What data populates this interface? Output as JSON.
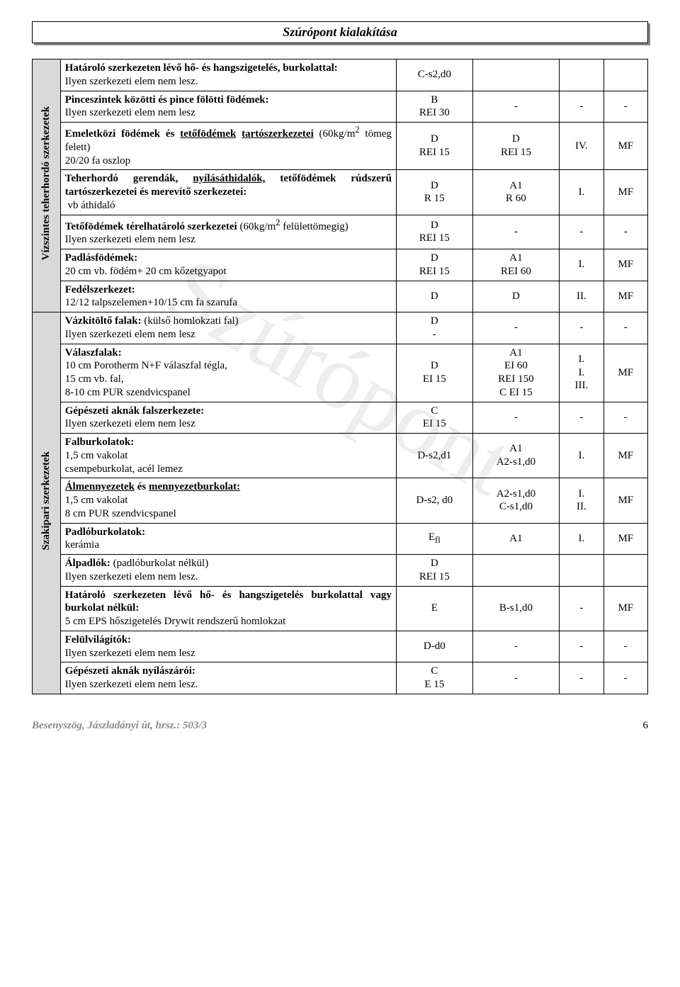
{
  "title": "Szúrópont kialakítása",
  "watermark": "Szúrópont",
  "footer_left": "Besenyszög, Jászladányi út, hrsz.: 503/3",
  "page_number": "6",
  "col_widths": {
    "vcol": 35,
    "desc": 400,
    "c3": 90,
    "c4": 100,
    "c5": 60,
    "c6": 60
  },
  "sections": [
    {
      "label": "Vízszintes teherhordó szerkezetek",
      "rows": [
        {
          "desc_html": "<span class='b'>Határoló szerkezeten lévő hő- és hangszigetelés, burkolattal:</span><br>Ilyen szerkezeti elem nem lesz.",
          "c3": "C-s2,d0",
          "c4": "",
          "c5": "",
          "c6": ""
        },
        {
          "desc_html": "<span class='b'>Pinceszintek közötti és pince fölötti födémek:</span><br>Ilyen szerkezeti elem nem lesz",
          "c3": "B\nREI 30",
          "c4": "-",
          "c5": "-",
          "c6": "-"
        },
        {
          "desc_html": "<span class='b'>Emeletközi födémek és <span class='u'>tetőfödémek</span> <span class='u'>tartószerkezetei</span></span> (60kg/m<sup>2</sup> tömeg felett)<br>20/20 fa oszlop",
          "c3": "D\nREI 15",
          "c4": "D\nREI 15",
          "c5": "IV.",
          "c6": "MF"
        },
        {
          "desc_html": "<span class='b'>Teherhordó gerendák, <span class='u'>nyílásáthidalók,</span> tetőfödémek rúdszerű tartószerkezetei és merevítő szerkezetei:</span><br>&nbsp;vb áthidaló",
          "c3": "D\nR 15",
          "c4": "A1\nR 60",
          "c5": "I.",
          "c6": "MF"
        },
        {
          "desc_html": "<span class='b'>Tetőfödémek térelhatároló szerkezetei</span> (60kg/m<sup>2</sup> felülettömegig)<br>Ilyen szerkezeti elem nem lesz",
          "c3": "D\nREI 15",
          "c4": "-",
          "c5": "-",
          "c6": "-"
        },
        {
          "desc_html": "<span class='b'>Padlásfödémek:</span><br>20 cm vb. födém+ 20 cm kőzetgyapot",
          "c3": "D\nREI 15",
          "c4": "A1\nREI 60",
          "c5": "I.",
          "c6": "MF"
        },
        {
          "desc_html": "<span class='b'>Fedélszerkezet:</span><br>12/12 talpszelemen+10/15 cm fa szarufa",
          "c3": "D",
          "c4": "D",
          "c5": "II.",
          "c6": "MF"
        }
      ]
    },
    {
      "label": "Szakipari szerkezetek",
      "rows": [
        {
          "desc_html": "<span class='b'>Vázkitöltő falak:</span> (külső homlokzati fal)<br>Ilyen szerkezeti elem nem lesz",
          "c3": "D\n-",
          "c4": "-",
          "c5": "-",
          "c6": "-"
        },
        {
          "desc_html": "<span class='b'>Válaszfalak:</span><br>10 cm Porotherm N+F válaszfal tégla,<br>15 cm vb. fal,<br>8-10 cm PUR szendvicspanel",
          "c3": "D\nEI 15",
          "c4": "A1\nEI 60\nREI 150\nC EI 15",
          "c5": "I.\nI.\nIII.",
          "c6": "MF"
        },
        {
          "desc_html": "<span class='b'>Gépészeti aknák falszerkezete:</span><br>Ilyen szerkezeti elem nem lesz",
          "c3": "C\nEI 15",
          "c4": "-",
          "c5": "-",
          "c6": "-"
        },
        {
          "desc_html": "<span class='b'>Falburkolatok:</span><br>1,5 cm vakolat<br>csempeburkolat, acél lemez",
          "c3": "D-s2,d1",
          "c4": "A1\nA2-s1,d0",
          "c5": "I.",
          "c6": "MF"
        },
        {
          "desc_html": "<span class='b u'>Álmennyezetek</span> <span class='b'>és <span class='u'>mennyezetburkolat:</span></span><br>1,5 cm vakolat<br>8 cm PUR szendvicspanel",
          "c3": "D-s2, d0",
          "c4": "A2-s1,d0\nC-s1,d0",
          "c5": "I.\nII.",
          "c6": "MF"
        },
        {
          "desc_html": "<span class='b'>Padlóburkolatok:</span><br>kerámia",
          "c3": "E<sub>fl</sub>",
          "c4": "A1",
          "c5": "I.",
          "c6": "MF"
        },
        {
          "desc_html": "<span class='b'>Álpadlók:</span> (padlóburkolat nélkül)<br>Ilyen szerkezeti elem nem lesz.",
          "c3": "D\nREI 15",
          "c4": "",
          "c5": "",
          "c6": ""
        },
        {
          "desc_html": "<span class='b'>Határoló szerkezeten lévő hő- és hangszigetelés burkolattal vagy burkolat nélkül:</span><br>5 cm EPS hőszigetelés Drywit rendszerű homlokzat",
          "c3": "E",
          "c4": "B-s1,d0",
          "c5": "-",
          "c6": "MF"
        },
        {
          "desc_html": "<span class='b'>Felülvilágítók:</span><br>Ilyen szerkezeti elem nem lesz",
          "c3": "D-d0",
          "c4": "-",
          "c5": "-",
          "c6": "-"
        },
        {
          "desc_html": "<span class='b'>Gépészeti aknák nyílászárói:</span><br>Ilyen szerkezeti elem nem lesz.",
          "c3": "C\nE 15",
          "c4": "-",
          "c5": "-",
          "c6": "-"
        }
      ]
    }
  ]
}
